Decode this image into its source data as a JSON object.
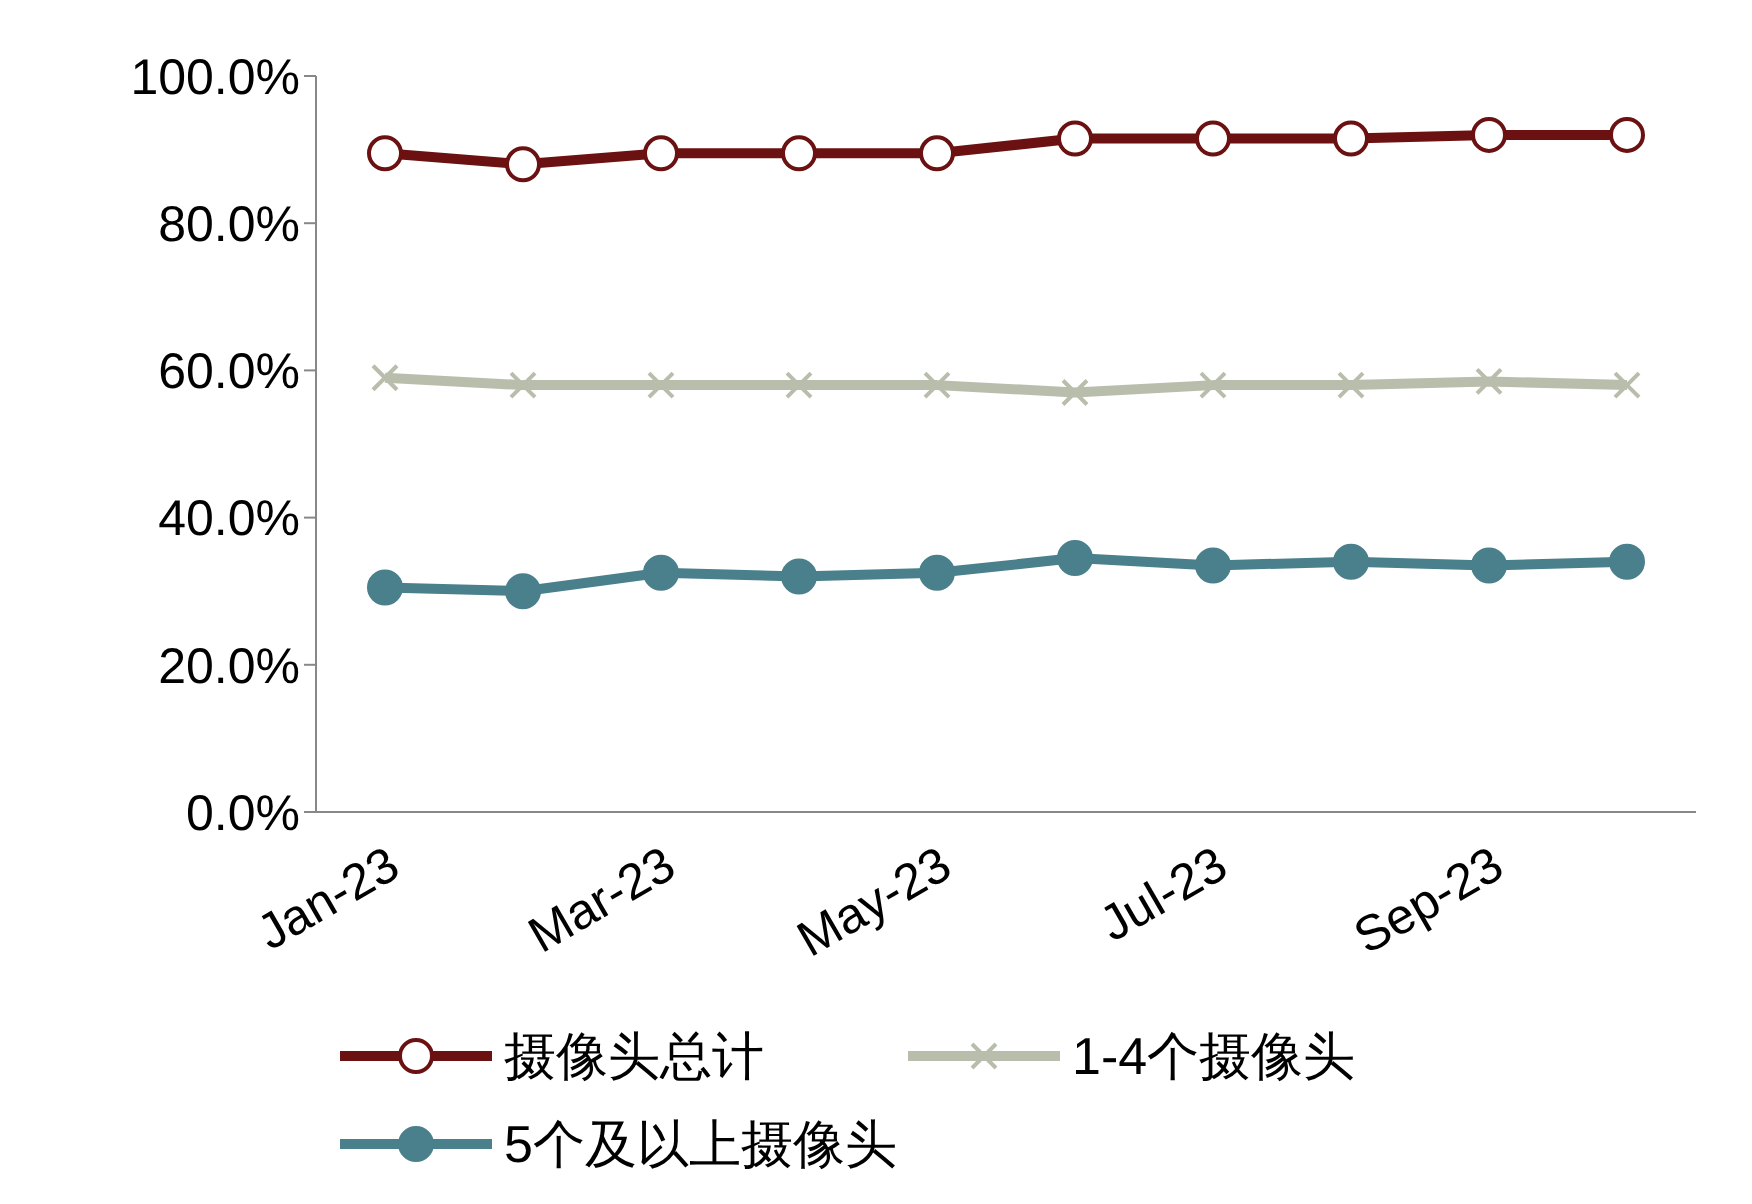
{
  "chart_data": {
    "type": "line",
    "categories": [
      "Jan-23",
      null,
      "Mar-23",
      null,
      "May-23",
      null,
      "Jul-23",
      null,
      "Sep-23",
      null
    ],
    "series": [
      {
        "name": "摄像头总计",
        "color": "#6b1111",
        "marker": "circle",
        "values": [
          89.5,
          88,
          89.5,
          89.5,
          89.5,
          91.5,
          91.5,
          91.5,
          92,
          92
        ]
      },
      {
        "name": "1-4个摄像头",
        "color": "#b9bdac",
        "marker": "cross",
        "values": [
          59,
          58,
          58,
          58,
          58,
          57,
          58,
          58,
          58.5,
          58
        ]
      },
      {
        "name": "5个及以上摄像头",
        "color": "#4a7f8c",
        "marker": "circle",
        "values": [
          30.5,
          30,
          32.5,
          32,
          32.5,
          34.5,
          33.5,
          34,
          33.5,
          34
        ]
      }
    ],
    "ylim": [
      0,
      100
    ],
    "yticks": [
      {
        "value": 0,
        "label": "0.0%"
      },
      {
        "value": 20,
        "label": "20.0%"
      },
      {
        "value": 40,
        "label": "40.0%"
      },
      {
        "value": 60,
        "label": "60.0%"
      },
      {
        "value": 80,
        "label": "80.0%"
      },
      {
        "value": 100,
        "label": "100.0%"
      }
    ],
    "grid": false,
    "legend": "bottom",
    "line_style": "solid"
  }
}
